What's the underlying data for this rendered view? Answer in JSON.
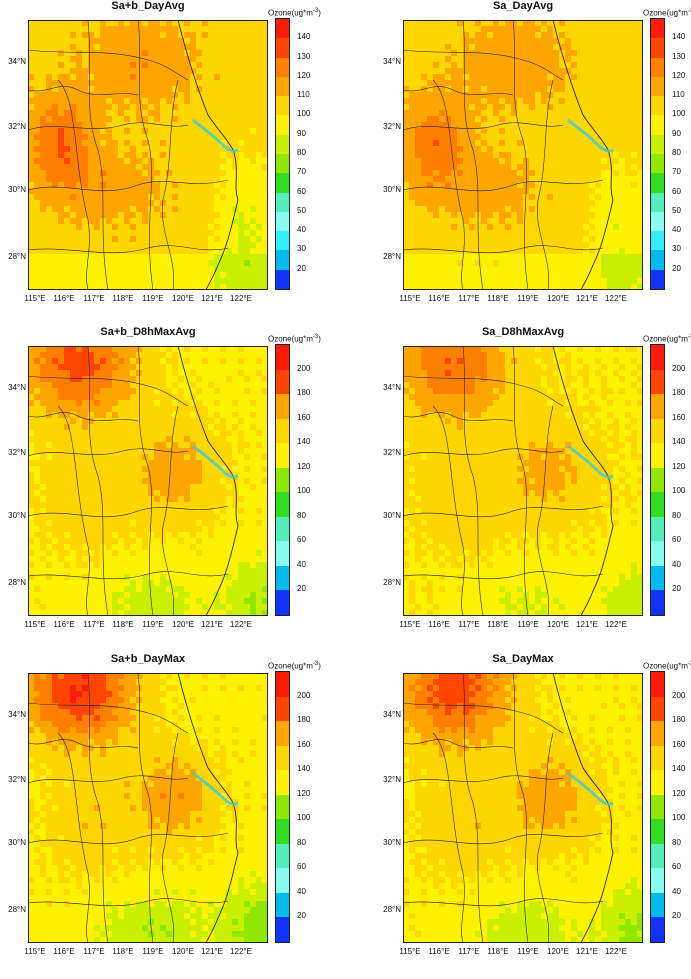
{
  "legend_title": "Ozone(ug*m",
  "legend_title_sup": "-3",
  "lat_labels": [
    "34°N",
    "32°N",
    "30°N",
    "28°N"
  ],
  "lon_labels": [
    "115°E",
    "116°E",
    "117°E",
    "118°E",
    "119°E",
    "120°E",
    "121°E",
    "122°E"
  ],
  "panels": [
    {
      "title": "Sa+b_DayAvg",
      "colorbar_ticks": [
        "140",
        "130",
        "120",
        "110",
        "100",
        "90",
        "80",
        "70",
        "60",
        "50",
        "40",
        "30",
        "20"
      ],
      "scheme": "avg",
      "intensity": 1.0
    },
    {
      "title": "Sa_DayAvg",
      "colorbar_ticks": [
        "140",
        "130",
        "120",
        "110",
        "100",
        "90",
        "80",
        "70",
        "60",
        "50",
        "40",
        "30",
        "20"
      ],
      "scheme": "avg",
      "intensity": 0.85
    },
    {
      "title": "Sa+b_D8hMaxAvg",
      "colorbar_ticks": [
        "200",
        "180",
        "160",
        "140",
        "120",
        "100",
        "80",
        "60",
        "40",
        "20"
      ],
      "scheme": "max",
      "intensity": 0.95
    },
    {
      "title": "Sa_D8hMaxAvg",
      "colorbar_ticks": [
        "200",
        "180",
        "160",
        "140",
        "120",
        "100",
        "80",
        "60",
        "40",
        "20"
      ],
      "scheme": "max",
      "intensity": 0.8
    },
    {
      "title": "Sa+b_DayMax",
      "colorbar_ticks": [
        "200",
        "180",
        "160",
        "140",
        "120",
        "100",
        "80",
        "60",
        "40",
        "20"
      ],
      "scheme": "max",
      "intensity": 1.15
    },
    {
      "title": "Sa_DayMax",
      "colorbar_ticks": [
        "200",
        "180",
        "160",
        "140",
        "120",
        "100",
        "80",
        "60",
        "40",
        "20"
      ],
      "scheme": "max",
      "intensity": 1.0
    }
  ],
  "colors": {
    "scale": [
      "#ff1a0a",
      "#ff4500",
      "#ff7f00",
      "#ffa500",
      "#ffd700",
      "#fff200",
      "#c8f000",
      "#90e800",
      "#33dd22",
      "#55eebb",
      "#88ffee",
      "#33eeff",
      "#00bbee",
      "#1133ff"
    ]
  }
}
